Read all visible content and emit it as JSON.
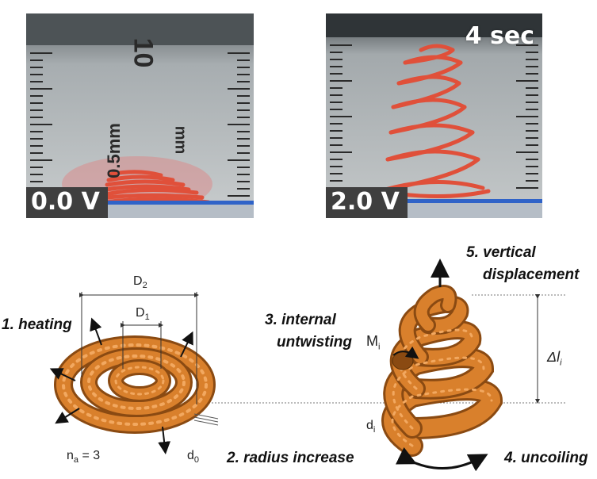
{
  "panels": {
    "before": {
      "voltage_label": "0.0 V"
    },
    "after": {
      "voltage_label": "2.0 V",
      "time_label": "4 sec"
    }
  },
  "ruler": {
    "major_label": "10",
    "unit_label": "mm",
    "scale_label": "0.5mm"
  },
  "steps": {
    "heating": "1. heating",
    "radius": "2. radius increase",
    "untwisting_line1": "3. internal",
    "untwisting_line2": "untwisting",
    "uncoiling": "4. uncoiling",
    "vertical_line1": "5. vertical",
    "vertical_line2": "displacement"
  },
  "symbols": {
    "D2": {
      "base": "D",
      "sub": "2"
    },
    "D1": {
      "base": "D",
      "sub": "1"
    },
    "d0": {
      "base": "d",
      "sub": "0"
    },
    "na": {
      "base": "n",
      "sub": "a",
      "rest": " = 3"
    },
    "Mi": {
      "base": "M",
      "sub": "i"
    },
    "di": {
      "base": "d",
      "sub": "i"
    },
    "dl": {
      "base": "Δl",
      "sub": "i"
    }
  },
  "colors": {
    "coil_fill": "#d9802c",
    "coil_dark": "#8a4a12",
    "wire_red": "#e0503a",
    "label_bg": "#3f3f3f",
    "photo_bg": "#9aa0a3",
    "blue_tape": "#2f63c8"
  }
}
